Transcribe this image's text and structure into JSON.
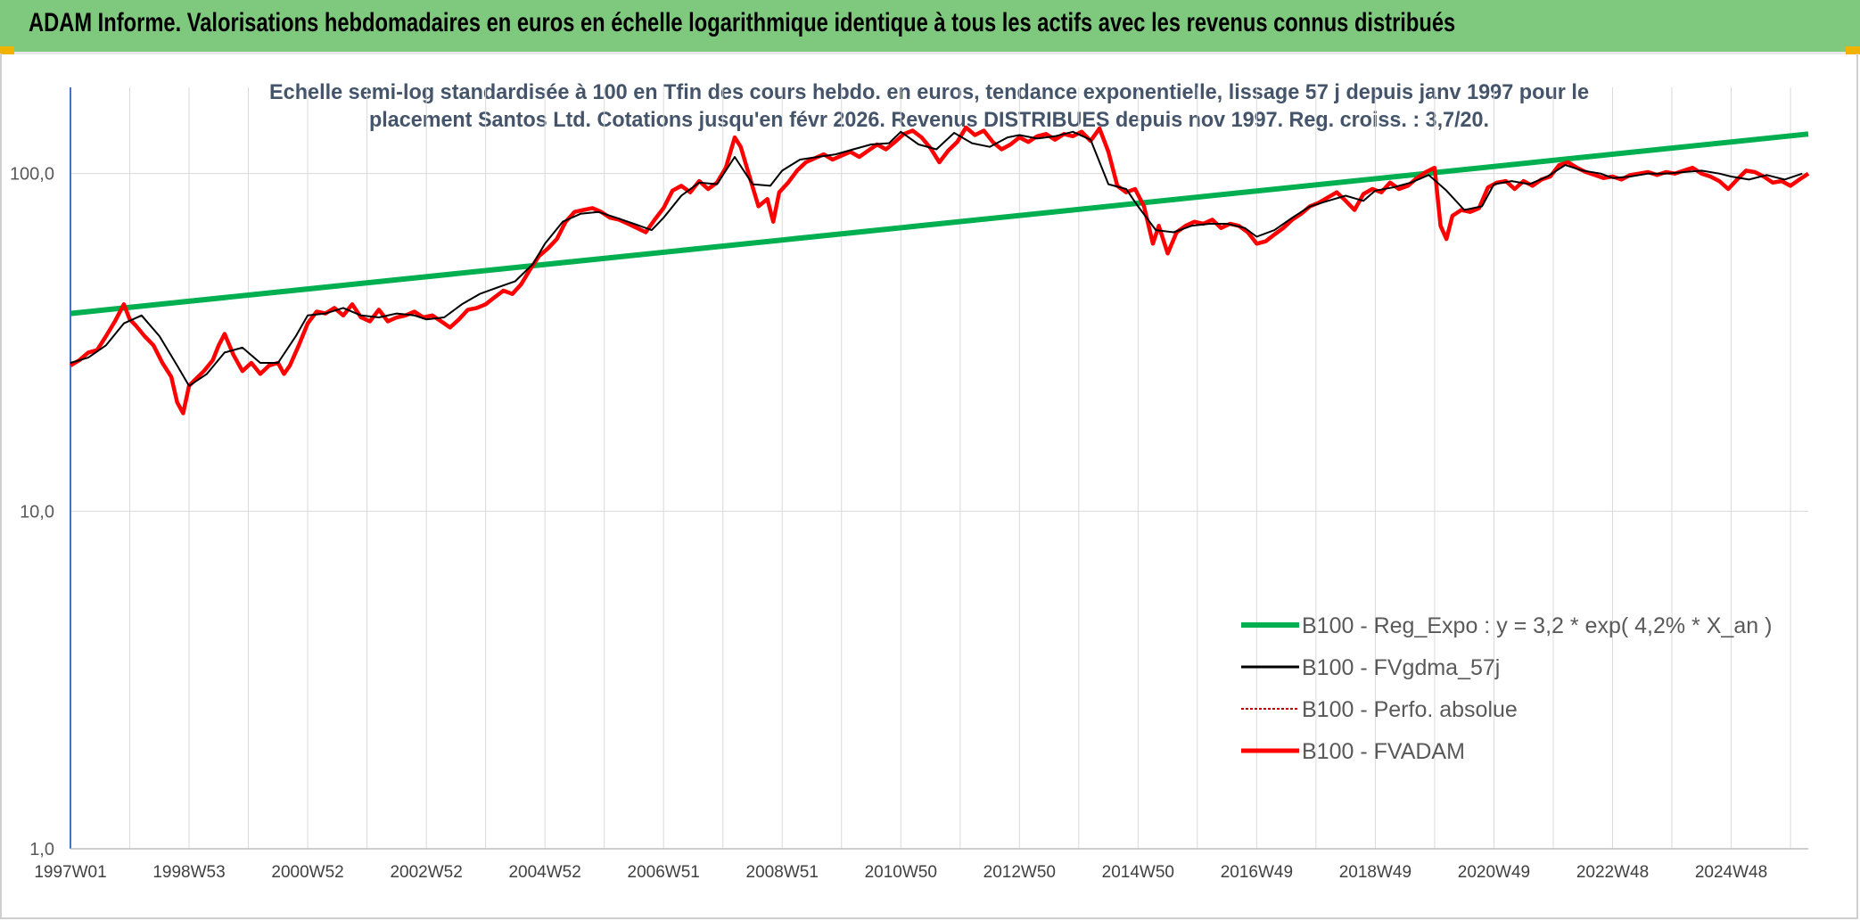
{
  "header": {
    "title": "ADAM Informe. Valorisations hebdomadaires en euros en échelle logarithmique identique à tous les actifs avec les revenus connus distribués"
  },
  "chart_data": {
    "type": "line",
    "title": "Echelle semi-log standardisée à 100 en Tfin des cours hebdo. en euros, tendance exponentielle, lissage 57 j depuis janv 1997 pour le",
    "subtitle": "placement Santos Ltd. Cotations jusqu'en févr 2026. Revenus DISTRIBUES depuis nov 1997. Reg. croiss. : 3,7/20.",
    "y_scale": "log",
    "ylim": [
      1,
      180
    ],
    "y_ticks": [
      "1,0",
      "10,0",
      "100,0"
    ],
    "y_tick_values": [
      1,
      10,
      100
    ],
    "xlim": [
      1997.0,
      2026.3
    ],
    "x_ticks": [
      "1997W01",
      "1998W53",
      "2000W52",
      "2002W52",
      "2004W52",
      "2006W51",
      "2008W51",
      "2010W50",
      "2012W50",
      "2014W50",
      "2016W49",
      "2018W49",
      "2020W49",
      "2022W48",
      "2024W48"
    ],
    "x_tick_values": [
      1997.0,
      1999.0,
      2001.0,
      2003.0,
      2005.0,
      2007.0,
      2009.0,
      2011.0,
      2013.0,
      2015.0,
      2017.0,
      2019.0,
      2021.0,
      2023.0,
      2025.0
    ],
    "grid": true,
    "legend_position": "bottom-right",
    "colors": {
      "reg": "#00b050",
      "smooth": "#000000",
      "perf": "#c00000",
      "adam": "#ff0000",
      "grid": "#d9d9d9",
      "axis": "#4472c4"
    },
    "series": [
      {
        "name": "B100 - Reg_Expo : y = 3,2 * exp( 4,2% *  X_an )",
        "x": [
          1997.0,
          2026.3
        ],
        "values": [
          38.5,
          131.0
        ]
      },
      {
        "name": "B100 - FVgdma_57j",
        "x": [
          1997.0,
          1997.3,
          1997.6,
          1997.9,
          1998.2,
          1998.5,
          1998.8,
          1999.0,
          1999.3,
          1999.6,
          1999.9,
          2000.2,
          2000.5,
          2000.8,
          2001.0,
          2001.3,
          2001.6,
          2001.9,
          2002.2,
          2002.5,
          2002.8,
          2003.0,
          2003.3,
          2003.6,
          2003.9,
          2004.2,
          2004.5,
          2004.8,
          2005.0,
          2005.3,
          2005.6,
          2005.9,
          2006.2,
          2006.5,
          2006.8,
          2007.0,
          2007.3,
          2007.6,
          2007.9,
          2008.2,
          2008.5,
          2008.8,
          2009.0,
          2009.3,
          2009.6,
          2009.9,
          2010.2,
          2010.5,
          2010.8,
          2011.0,
          2011.3,
          2011.6,
          2011.9,
          2012.2,
          2012.5,
          2012.8,
          2013.0,
          2013.3,
          2013.6,
          2013.9,
          2014.2,
          2014.5,
          2014.8,
          2015.0,
          2015.3,
          2015.6,
          2015.9,
          2016.2,
          2016.5,
          2016.8,
          2017.0,
          2017.3,
          2017.6,
          2017.9,
          2018.2,
          2018.5,
          2018.8,
          2019.0,
          2019.3,
          2019.6,
          2019.9,
          2020.2,
          2020.5,
          2020.8,
          2021.0,
          2021.3,
          2021.6,
          2021.9,
          2022.2,
          2022.5,
          2022.8,
          2023.0,
          2023.3,
          2023.6,
          2023.9,
          2024.2,
          2024.5,
          2024.8,
          2025.0,
          2025.3,
          2025.6,
          2025.9,
          2026.2
        ],
        "values": [
          27.5,
          28.5,
          31.0,
          36.0,
          38.0,
          33.0,
          27.0,
          23.5,
          25.5,
          29.5,
          30.5,
          27.5,
          27.5,
          33.0,
          38.0,
          38.5,
          40.0,
          38.0,
          37.5,
          38.5,
          38.0,
          37.0,
          37.5,
          41.0,
          44.0,
          46.0,
          48.0,
          54.0,
          62.0,
          72.0,
          76.0,
          77.0,
          74.0,
          71.0,
          68.0,
          74.0,
          86.0,
          94.0,
          93.0,
          112.0,
          93.0,
          92.0,
          102.0,
          110.0,
          112.0,
          114.0,
          118.0,
          122.0,
          123.0,
          133.0,
          122.0,
          118.0,
          132.0,
          123.0,
          120.0,
          128.0,
          130.0,
          127.0,
          129.0,
          133.0,
          126.0,
          93.0,
          90.0,
          80.0,
          68.0,
          67.0,
          70.0,
          71.0,
          71.0,
          69.0,
          65.0,
          68.0,
          74.0,
          80.0,
          83.0,
          86.0,
          83.0,
          89.0,
          91.0,
          94.0,
          99.0,
          89.0,
          78.0,
          80.0,
          93.0,
          95.0,
          93.0,
          98.0,
          106.0,
          102.0,
          100.0,
          97.0,
          98.0,
          100.0,
          100.0,
          101.0,
          102.0,
          100.0,
          98.0,
          96.0,
          99.0,
          96.0,
          100.0
        ]
      },
      {
        "name": "B100 - Perfo. absolue",
        "x": [],
        "values": []
      },
      {
        "name": "B100 - FVADAM",
        "x": [
          1997.0,
          1997.15,
          1997.3,
          1997.45,
          1997.6,
          1997.75,
          1997.9,
          1998.0,
          1998.1,
          1998.25,
          1998.4,
          1998.55,
          1998.7,
          1998.8,
          1998.9,
          1999.0,
          1999.1,
          1999.25,
          1999.4,
          1999.5,
          1999.6,
          1999.75,
          1999.9,
          2000.05,
          2000.2,
          2000.35,
          2000.5,
          2000.6,
          2000.7,
          2000.85,
          2001.0,
          2001.15,
          2001.3,
          2001.45,
          2001.6,
          2001.75,
          2001.9,
          2002.05,
          2002.2,
          2002.35,
          2002.5,
          2002.65,
          2002.8,
          2002.95,
          2003.1,
          2003.25,
          2003.4,
          2003.55,
          2003.7,
          2003.85,
          2004.0,
          2004.15,
          2004.3,
          2004.45,
          2004.6,
          2004.75,
          2004.9,
          2005.05,
          2005.2,
          2005.35,
          2005.5,
          2005.65,
          2005.8,
          2005.95,
          2006.1,
          2006.25,
          2006.4,
          2006.55,
          2006.7,
          2006.85,
          2007.0,
          2007.15,
          2007.3,
          2007.45,
          2007.6,
          2007.75,
          2007.9,
          2008.05,
          2008.2,
          2008.3,
          2008.45,
          2008.6,
          2008.75,
          2008.85,
          2008.95,
          2009.1,
          2009.25,
          2009.4,
          2009.55,
          2009.7,
          2009.85,
          2010.0,
          2010.15,
          2010.3,
          2010.45,
          2010.6,
          2010.75,
          2010.9,
          2011.05,
          2011.2,
          2011.35,
          2011.5,
          2011.65,
          2011.8,
          2011.95,
          2012.1,
          2012.25,
          2012.4,
          2012.55,
          2012.7,
          2012.85,
          2013.0,
          2013.15,
          2013.3,
          2013.45,
          2013.6,
          2013.75,
          2013.9,
          2014.05,
          2014.2,
          2014.35,
          2014.5,
          2014.65,
          2014.8,
          2014.95,
          2015.1,
          2015.25,
          2015.35,
          2015.5,
          2015.65,
          2015.8,
          2015.95,
          2016.1,
          2016.25,
          2016.4,
          2016.55,
          2016.7,
          2016.85,
          2017.0,
          2017.15,
          2017.3,
          2017.45,
          2017.6,
          2017.75,
          2017.9,
          2018.05,
          2018.2,
          2018.35,
          2018.5,
          2018.65,
          2018.8,
          2018.95,
          2019.1,
          2019.25,
          2019.4,
          2019.55,
          2019.7,
          2019.85,
          2020.0,
          2020.1,
          2020.2,
          2020.3,
          2020.45,
          2020.6,
          2020.75,
          2020.9,
          2021.05,
          2021.2,
          2021.35,
          2021.5,
          2021.65,
          2021.8,
          2021.95,
          2022.1,
          2022.25,
          2022.4,
          2022.55,
          2022.7,
          2022.85,
          2023.0,
          2023.15,
          2023.3,
          2023.45,
          2023.6,
          2023.75,
          2023.9,
          2024.05,
          2024.2,
          2024.35,
          2024.5,
          2024.65,
          2024.8,
          2024.95,
          2025.1,
          2025.25,
          2025.4,
          2025.55,
          2025.7,
          2025.85,
          2026.0,
          2026.15,
          2026.3
        ],
        "values": [
          27.0,
          28.0,
          29.5,
          30.0,
          33.0,
          36.5,
          41.0,
          37.0,
          35.5,
          33.0,
          31.0,
          27.5,
          25.0,
          21.0,
          19.5,
          23.5,
          24.5,
          26.0,
          28.0,
          31.0,
          33.5,
          29.0,
          26.0,
          27.5,
          25.5,
          27.0,
          27.5,
          25.5,
          27.0,
          31.0,
          36.0,
          39.0,
          38.5,
          40.0,
          38.0,
          41.0,
          37.5,
          36.5,
          39.5,
          36.5,
          37.5,
          38.0,
          39.0,
          37.5,
          38.0,
          36.5,
          35.0,
          37.0,
          39.5,
          40.0,
          41.0,
          43.0,
          45.0,
          44.0,
          47.0,
          52.0,
          57.0,
          60.0,
          64.0,
          72.0,
          77.0,
          78.0,
          79.0,
          77.0,
          74.0,
          73.0,
          71.0,
          69.0,
          67.0,
          73.0,
          79.0,
          89.0,
          92.0,
          88.0,
          95.0,
          90.0,
          94.0,
          104.0,
          128.0,
          120.0,
          98.0,
          80.0,
          84.0,
          72.0,
          88.0,
          94.0,
          102.0,
          108.0,
          111.0,
          114.0,
          110.0,
          113.0,
          116.0,
          112.0,
          117.0,
          122.0,
          118.0,
          124.0,
          131.0,
          134.0,
          128.0,
          119.0,
          108.0,
          117.0,
          124.0,
          137.0,
          130.0,
          134.0,
          124.0,
          118.0,
          122.0,
          128.0,
          124.0,
          129.0,
          131.0,
          126.0,
          131.0,
          129.0,
          133.0,
          125.0,
          136.0,
          116.0,
          92.0,
          88.0,
          90.0,
          80.0,
          62.0,
          70.0,
          58.0,
          67.0,
          70.0,
          72.0,
          71.0,
          73.0,
          69.0,
          71.0,
          70.0,
          67.0,
          62.0,
          63.0,
          66.0,
          69.0,
          73.0,
          76.0,
          80.0,
          82.0,
          85.0,
          88.0,
          83.0,
          78.0,
          87.0,
          90.0,
          88.0,
          94.0,
          90.0,
          92.0,
          97.0,
          101.0,
          104.0,
          70.0,
          64.0,
          75.0,
          78.0,
          77.0,
          79.0,
          91.0,
          94.0,
          95.0,
          90.0,
          95.0,
          92.0,
          96.0,
          98.0,
          106.0,
          108.0,
          104.0,
          101.0,
          99.0,
          97.0,
          98.0,
          96.0,
          99.0,
          100.0,
          101.0,
          99.0,
          101.0,
          100.0,
          102.0,
          104.0,
          100.0,
          98.0,
          95.0,
          90.0,
          96.0,
          102.0,
          101.0,
          98.0,
          94.0,
          95.0,
          92.0,
          96.0,
          100.0
        ]
      }
    ]
  }
}
